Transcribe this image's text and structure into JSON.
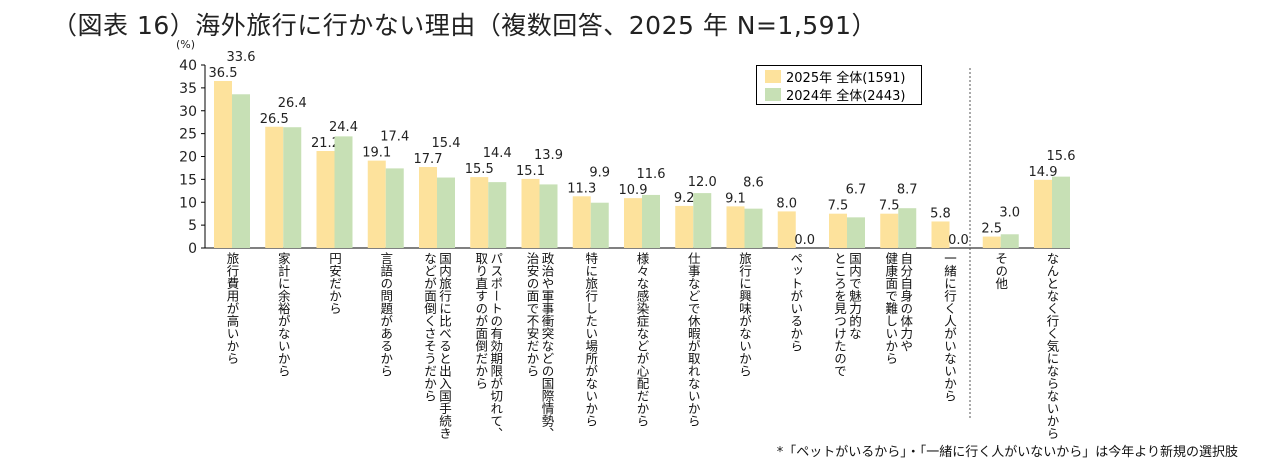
{
  "title": "（図表 16）海外旅行に行かない理由（複数回答、2025 年 N=1,591）",
  "footnote": "*「ペットがいるから」・「一緒に行く人がいないから」は今年より新規の選択肢",
  "chart_data": {
    "type": "bar",
    "title": "（図表 16）海外旅行に行かない理由（複数回答、2025 年 N=1,591）",
    "ylabel": "(%)",
    "ylim": [
      0,
      40
    ],
    "yticks": [
      0,
      5,
      10,
      15,
      20,
      25,
      30,
      35,
      40
    ],
    "grid": false,
    "legend_position": "top-right",
    "categories": [
      "旅行費用が高いから",
      "家計に余裕がないから",
      "円安だから",
      "言語の問題があるから",
      "国内旅行に比べると出入国手続き\nなどが面倒くさそうだから",
      "パスポートの有効期限が切れて、\n取り直すのが面倒だから",
      "政治や軍事衝突などの国際情勢、\n治安の面で不安だから",
      "特に旅行したい場所がないから",
      "様々な感染症などが心配だから",
      "仕事などで休暇が取れないから",
      "旅行に興味がないから",
      "ペットがいるから",
      "国内で魅力的な\nところを見つけたので",
      "自分自身の体力や\n健康面で難しいから",
      "一緒に行く人がいないから",
      "その他",
      "なんとなく行く気にならないから"
    ],
    "series": [
      {
        "name": "2025年 全体(1591)",
        "color": "#fde29c",
        "values": [
          36.5,
          26.5,
          21.2,
          19.1,
          17.7,
          15.5,
          15.1,
          11.3,
          10.9,
          9.2,
          9.1,
          8.0,
          7.5,
          7.5,
          5.8,
          2.5,
          14.9
        ]
      },
      {
        "name": "2024年 全体(2443)",
        "color": "#c7e0b5",
        "values": [
          33.6,
          26.4,
          24.4,
          17.4,
          15.4,
          14.4,
          13.9,
          9.9,
          11.6,
          12.0,
          8.6,
          0.0,
          6.7,
          8.7,
          0.0,
          3.0,
          15.6
        ]
      }
    ]
  }
}
